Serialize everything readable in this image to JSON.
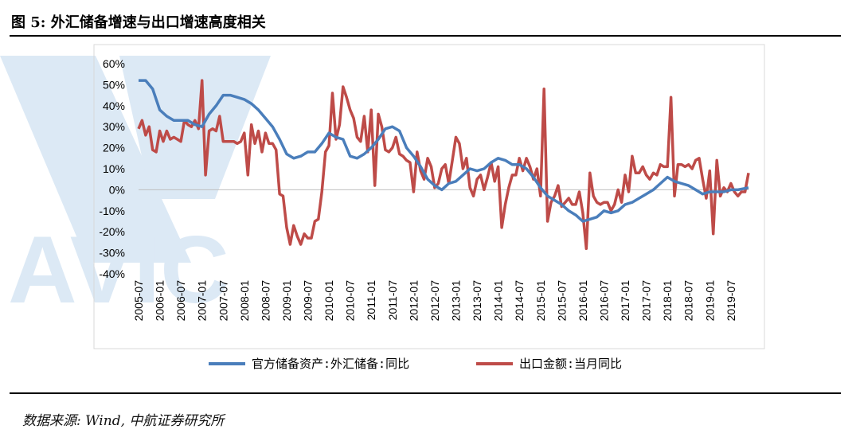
{
  "figure": {
    "title": "图 5: 外汇储备增速与出口增速高度相关",
    "source": "数据来源: Wind, 中航证券研究所",
    "watermark_text": "AVIC"
  },
  "colors": {
    "reserves": "#4a7ebb",
    "exports": "#be4b48",
    "watermark": "#dce9f5",
    "frame": "#d9d9d9"
  },
  "chart_data": {
    "type": "line",
    "ylim": [
      -0.4,
      0.6
    ],
    "yticks": [
      "60%",
      "50%",
      "40%",
      "30%",
      "20%",
      "10%",
      "0%",
      "-10%",
      "-20%",
      "-30%",
      "-40%"
    ],
    "xticks": [
      "2005-07",
      "2006-01",
      "2006-07",
      "2007-01",
      "2007-07",
      "2008-01",
      "2008-07",
      "2009-01",
      "2009-07",
      "2010-01",
      "2010-07",
      "2011-01",
      "2011-07",
      "2012-01",
      "2012-07",
      "2013-01",
      "2013-07",
      "2014-01",
      "2014-07",
      "2015-01",
      "2015-07",
      "2016-01",
      "2016-07",
      "2017-01",
      "2017-07",
      "2018-01",
      "2018-07",
      "2019-01",
      "2019-07"
    ],
    "x_start": "2005-07",
    "x_end": "2019-12",
    "series": [
      {
        "name": "官方储备资产:外汇储备:同比",
        "values": [
          [
            "2005-07",
            0.52
          ],
          [
            "2005-09",
            0.52
          ],
          [
            "2005-11",
            0.48
          ],
          [
            "2006-01",
            0.38
          ],
          [
            "2006-03",
            0.35
          ],
          [
            "2006-05",
            0.33
          ],
          [
            "2006-07",
            0.33
          ],
          [
            "2006-09",
            0.33
          ],
          [
            "2006-11",
            0.31
          ],
          [
            "2007-01",
            0.3
          ],
          [
            "2007-03",
            0.36
          ],
          [
            "2007-05",
            0.4
          ],
          [
            "2007-07",
            0.45
          ],
          [
            "2007-09",
            0.45
          ],
          [
            "2007-11",
            0.44
          ],
          [
            "2008-01",
            0.43
          ],
          [
            "2008-03",
            0.41
          ],
          [
            "2008-05",
            0.38
          ],
          [
            "2008-07",
            0.34
          ],
          [
            "2008-09",
            0.3
          ],
          [
            "2008-11",
            0.24
          ],
          [
            "2009-01",
            0.17
          ],
          [
            "2009-03",
            0.15
          ],
          [
            "2009-05",
            0.16
          ],
          [
            "2009-07",
            0.18
          ],
          [
            "2009-09",
            0.18
          ],
          [
            "2009-11",
            0.22
          ],
          [
            "2010-01",
            0.27
          ],
          [
            "2010-03",
            0.25
          ],
          [
            "2010-05",
            0.24
          ],
          [
            "2010-07",
            0.16
          ],
          [
            "2010-09",
            0.15
          ],
          [
            "2010-11",
            0.17
          ],
          [
            "2011-01",
            0.2
          ],
          [
            "2011-03",
            0.24
          ],
          [
            "2011-05",
            0.29
          ],
          [
            "2011-07",
            0.3
          ],
          [
            "2011-09",
            0.28
          ],
          [
            "2011-11",
            0.2
          ],
          [
            "2012-01",
            0.16
          ],
          [
            "2012-03",
            0.11
          ],
          [
            "2012-05",
            0.05
          ],
          [
            "2012-07",
            0.02
          ],
          [
            "2012-09",
            0.0
          ],
          [
            "2012-11",
            0.03
          ],
          [
            "2013-01",
            0.04
          ],
          [
            "2013-03",
            0.07
          ],
          [
            "2013-05",
            0.1
          ],
          [
            "2013-07",
            0.09
          ],
          [
            "2013-09",
            0.1
          ],
          [
            "2013-11",
            0.13
          ],
          [
            "2014-01",
            0.15
          ],
          [
            "2014-03",
            0.14
          ],
          [
            "2014-05",
            0.12
          ],
          [
            "2014-07",
            0.12
          ],
          [
            "2014-09",
            0.1
          ],
          [
            "2014-11",
            0.06
          ],
          [
            "2015-01",
            0.01
          ],
          [
            "2015-03",
            -0.03
          ],
          [
            "2015-05",
            -0.05
          ],
          [
            "2015-07",
            -0.07
          ],
          [
            "2015-09",
            -0.1
          ],
          [
            "2015-11",
            -0.12
          ],
          [
            "2016-01",
            -0.15
          ],
          [
            "2016-03",
            -0.14
          ],
          [
            "2016-05",
            -0.13
          ],
          [
            "2016-07",
            -0.1
          ],
          [
            "2016-09",
            -0.11
          ],
          [
            "2016-11",
            -0.1
          ],
          [
            "2017-01",
            -0.07
          ],
          [
            "2017-03",
            -0.06
          ],
          [
            "2017-05",
            -0.04
          ],
          [
            "2017-07",
            -0.02
          ],
          [
            "2017-09",
            0.0
          ],
          [
            "2017-11",
            0.03
          ],
          [
            "2018-01",
            0.06
          ],
          [
            "2018-03",
            0.04
          ],
          [
            "2018-05",
            0.03
          ],
          [
            "2018-07",
            0.02
          ],
          [
            "2018-09",
            0.0
          ],
          [
            "2018-11",
            -0.02
          ],
          [
            "2019-01",
            -0.01
          ],
          [
            "2019-03",
            -0.01
          ],
          [
            "2019-05",
            -0.01
          ],
          [
            "2019-07",
            0.0
          ],
          [
            "2019-09",
            0.0
          ],
          [
            "2019-12",
            0.01
          ]
        ]
      },
      {
        "name": "出口金额:当月同比",
        "values": [
          [
            "2005-07",
            0.29
          ],
          [
            "2005-08",
            0.33
          ],
          [
            "2005-09",
            0.26
          ],
          [
            "2005-10",
            0.3
          ],
          [
            "2005-11",
            0.19
          ],
          [
            "2005-12",
            0.18
          ],
          [
            "2006-01",
            0.28
          ],
          [
            "2006-02",
            0.23
          ],
          [
            "2006-03",
            0.28
          ],
          [
            "2006-04",
            0.24
          ],
          [
            "2006-05",
            0.25
          ],
          [
            "2006-06",
            0.24
          ],
          [
            "2006-07",
            0.23
          ],
          [
            "2006-08",
            0.33
          ],
          [
            "2006-09",
            0.31
          ],
          [
            "2006-10",
            0.3
          ],
          [
            "2006-11",
            0.33
          ],
          [
            "2006-12",
            0.29
          ],
          [
            "2007-01",
            0.52
          ],
          [
            "2007-02",
            0.07
          ],
          [
            "2007-03",
            0.28
          ],
          [
            "2007-04",
            0.29
          ],
          [
            "2007-05",
            0.28
          ],
          [
            "2007-06",
            0.35
          ],
          [
            "2007-07",
            0.23
          ],
          [
            "2007-08",
            0.23
          ],
          [
            "2007-09",
            0.23
          ],
          [
            "2007-10",
            0.23
          ],
          [
            "2007-11",
            0.22
          ],
          [
            "2007-12",
            0.23
          ],
          [
            "2008-01",
            0.27
          ],
          [
            "2008-02",
            0.07
          ],
          [
            "2008-03",
            0.31
          ],
          [
            "2008-04",
            0.22
          ],
          [
            "2008-05",
            0.28
          ],
          [
            "2008-06",
            0.18
          ],
          [
            "2008-07",
            0.27
          ],
          [
            "2008-08",
            0.22
          ],
          [
            "2008-09",
            0.22
          ],
          [
            "2008-10",
            0.19
          ],
          [
            "2008-11",
            -0.02
          ],
          [
            "2008-12",
            -0.03
          ],
          [
            "2009-01",
            -0.18
          ],
          [
            "2009-02",
            -0.26
          ],
          [
            "2009-03",
            -0.17
          ],
          [
            "2009-04",
            -0.22
          ],
          [
            "2009-05",
            -0.26
          ],
          [
            "2009-06",
            -0.21
          ],
          [
            "2009-07",
            -0.23
          ],
          [
            "2009-08",
            -0.23
          ],
          [
            "2009-09",
            -0.15
          ],
          [
            "2009-10",
            -0.14
          ],
          [
            "2009-11",
            -0.01
          ],
          [
            "2009-12",
            0.18
          ],
          [
            "2010-01",
            0.21
          ],
          [
            "2010-02",
            0.46
          ],
          [
            "2010-03",
            0.24
          ],
          [
            "2010-04",
            0.31
          ],
          [
            "2010-05",
            0.49
          ],
          [
            "2010-06",
            0.44
          ],
          [
            "2010-07",
            0.38
          ],
          [
            "2010-08",
            0.34
          ],
          [
            "2010-09",
            0.25
          ],
          [
            "2010-10",
            0.23
          ],
          [
            "2010-11",
            0.35
          ],
          [
            "2010-12",
            0.18
          ],
          [
            "2011-01",
            0.38
          ],
          [
            "2011-02",
            0.02
          ],
          [
            "2011-03",
            0.36
          ],
          [
            "2011-04",
            0.3
          ],
          [
            "2011-05",
            0.19
          ],
          [
            "2011-06",
            0.18
          ],
          [
            "2011-07",
            0.2
          ],
          [
            "2011-08",
            0.25
          ],
          [
            "2011-09",
            0.17
          ],
          [
            "2011-10",
            0.16
          ],
          [
            "2011-11",
            0.14
          ],
          [
            "2011-12",
            0.13
          ],
          [
            "2012-01",
            -0.01
          ],
          [
            "2012-02",
            0.18
          ],
          [
            "2012-03",
            0.09
          ],
          [
            "2012-04",
            0.05
          ],
          [
            "2012-05",
            0.15
          ],
          [
            "2012-06",
            0.11
          ],
          [
            "2012-07",
            0.01
          ],
          [
            "2012-08",
            0.03
          ],
          [
            "2012-09",
            0.1
          ],
          [
            "2012-10",
            0.12
          ],
          [
            "2012-11",
            0.03
          ],
          [
            "2012-12",
            0.14
          ],
          [
            "2013-01",
            0.25
          ],
          [
            "2013-02",
            0.22
          ],
          [
            "2013-03",
            0.1
          ],
          [
            "2013-04",
            0.15
          ],
          [
            "2013-05",
            0.01
          ],
          [
            "2013-06",
            -0.03
          ],
          [
            "2013-07",
            0.05
          ],
          [
            "2013-08",
            0.07
          ],
          [
            "2013-09",
            -0.0
          ],
          [
            "2013-10",
            0.06
          ],
          [
            "2013-11",
            0.13
          ],
          [
            "2013-12",
            0.04
          ],
          [
            "2014-01",
            0.11
          ],
          [
            "2014-02",
            -0.18
          ],
          [
            "2014-03",
            -0.07
          ],
          [
            "2014-04",
            0.01
          ],
          [
            "2014-05",
            0.07
          ],
          [
            "2014-06",
            0.07
          ],
          [
            "2014-07",
            0.15
          ],
          [
            "2014-08",
            0.09
          ],
          [
            "2014-09",
            0.15
          ],
          [
            "2014-10",
            0.11
          ],
          [
            "2014-11",
            0.05
          ],
          [
            "2014-12",
            0.1
          ],
          [
            "2015-01",
            -0.03
          ],
          [
            "2015-02",
            0.48
          ],
          [
            "2015-03",
            -0.15
          ],
          [
            "2015-04",
            -0.06
          ],
          [
            "2015-05",
            -0.03
          ],
          [
            "2015-06",
            0.02
          ],
          [
            "2015-07",
            -0.08
          ],
          [
            "2015-08",
            -0.06
          ],
          [
            "2015-09",
            -0.04
          ],
          [
            "2015-10",
            -0.07
          ],
          [
            "2015-11",
            -0.07
          ],
          [
            "2015-12",
            -0.01
          ],
          [
            "2016-01",
            -0.11
          ],
          [
            "2016-02",
            -0.28
          ],
          [
            "2016-03",
            0.08
          ],
          [
            "2016-04",
            -0.03
          ],
          [
            "2016-05",
            -0.06
          ],
          [
            "2016-06",
            -0.07
          ],
          [
            "2016-07",
            -0.06
          ],
          [
            "2016-08",
            -0.06
          ],
          [
            "2016-09",
            -0.1
          ],
          [
            "2016-10",
            -0.07
          ],
          [
            "2016-11",
            0.0
          ],
          [
            "2016-12",
            -0.06
          ],
          [
            "2017-01",
            0.07
          ],
          [
            "2017-02",
            -0.01
          ],
          [
            "2017-03",
            0.16
          ],
          [
            "2017-04",
            0.08
          ],
          [
            "2017-05",
            0.08
          ],
          [
            "2017-06",
            0.11
          ],
          [
            "2017-07",
            0.07
          ],
          [
            "2017-08",
            0.05
          ],
          [
            "2017-09",
            0.08
          ],
          [
            "2017-10",
            0.07
          ],
          [
            "2017-11",
            0.12
          ],
          [
            "2017-12",
            0.11
          ],
          [
            "2018-01",
            0.11
          ],
          [
            "2018-02",
            0.44
          ],
          [
            "2018-03",
            -0.03
          ],
          [
            "2018-04",
            0.12
          ],
          [
            "2018-05",
            0.12
          ],
          [
            "2018-06",
            0.11
          ],
          [
            "2018-07",
            0.12
          ],
          [
            "2018-08",
            0.1
          ],
          [
            "2018-09",
            0.14
          ],
          [
            "2018-10",
            0.15
          ],
          [
            "2018-11",
            0.05
          ],
          [
            "2018-12",
            -0.04
          ],
          [
            "2019-01",
            0.09
          ],
          [
            "2019-02",
            -0.21
          ],
          [
            "2019-03",
            0.14
          ],
          [
            "2019-04",
            -0.03
          ],
          [
            "2019-05",
            0.01
          ],
          [
            "2019-06",
            -0.01
          ],
          [
            "2019-07",
            0.03
          ],
          [
            "2019-08",
            -0.01
          ],
          [
            "2019-09",
            -0.03
          ],
          [
            "2019-10",
            -0.01
          ],
          [
            "2019-11",
            -0.01
          ],
          [
            "2019-12",
            0.08
          ]
        ]
      }
    ]
  }
}
